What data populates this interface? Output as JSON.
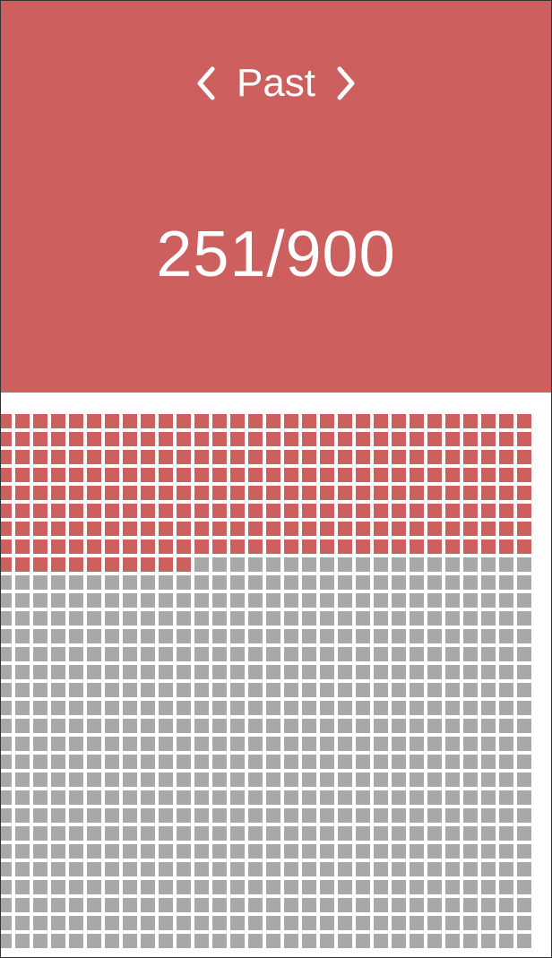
{
  "header": {
    "title": "Past",
    "prev_icon": "chevron-left-icon",
    "next_icon": "chevron-right-icon"
  },
  "progress": {
    "label": "251/900",
    "filled": 251,
    "total": 900
  },
  "grid": {
    "columns": 30,
    "rows": 30
  },
  "colors": {
    "accent": "#cd5f5f",
    "empty": "#a8a8a8",
    "background": "#ffffff"
  }
}
